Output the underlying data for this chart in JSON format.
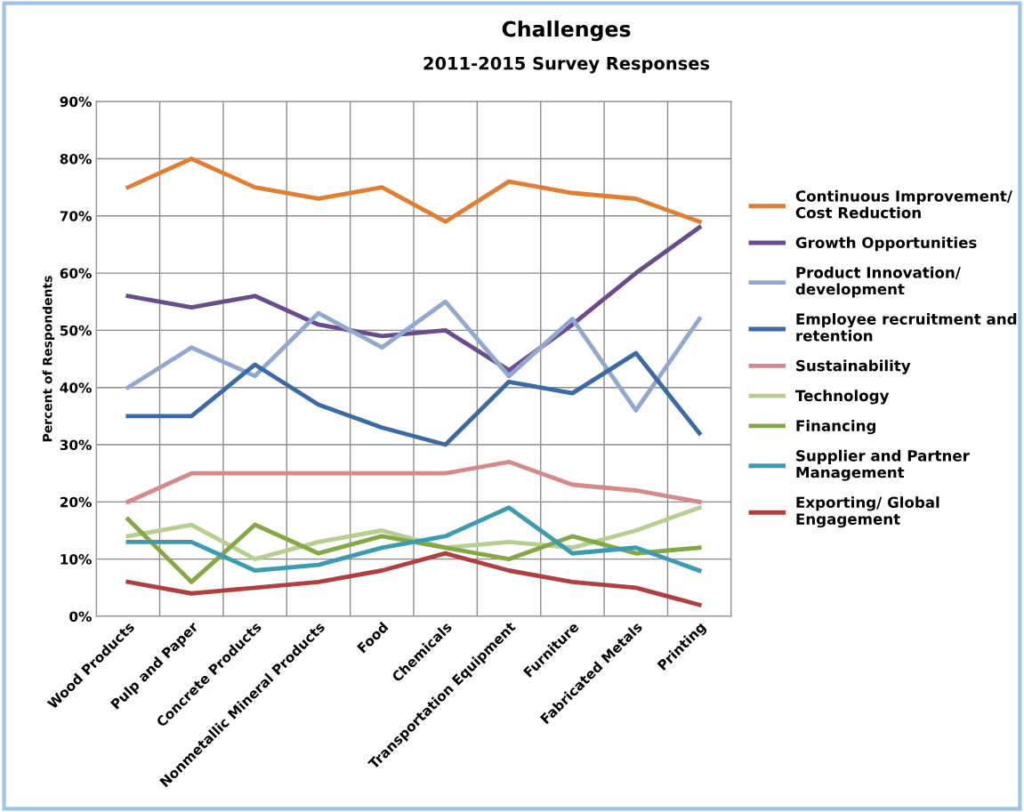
{
  "chart_data": {
    "type": "line",
    "title": "Challenges",
    "subtitle": "2011-2015 Survey Responses",
    "ylabel": "Percent of Respondents",
    "categories": [
      "Wood Products",
      "Pulp and Paper",
      "Concrete Products",
      "Nonmetallic Mineral Products",
      "Food",
      "Chemicals",
      "Transportation Equipment",
      "Furniture",
      "Fabricated Metals",
      "Printing"
    ],
    "series": [
      {
        "name": "Continuous Improvement/\nCost Reduction",
        "color": "#e07f34",
        "values": [
          75,
          80,
          75,
          73,
          75,
          69,
          76,
          74,
          73,
          69
        ]
      },
      {
        "name": "Growth Opportunities",
        "color": "#6a4c8c",
        "values": [
          56,
          54,
          56,
          51,
          49,
          50,
          43,
          51,
          60,
          68
        ]
      },
      {
        "name": "Product Innovation/\ndevelopment",
        "color": "#8fa9d2",
        "values": [
          40,
          47,
          42,
          53,
          47,
          55,
          42,
          52,
          36,
          52
        ]
      },
      {
        "name": "Employee recruitment and\nretention",
        "color": "#3b6aa6",
        "values": [
          35,
          35,
          44,
          37,
          33,
          30,
          41,
          39,
          46,
          32
        ]
      },
      {
        "name": "Sustainability",
        "color": "#d48a8a",
        "values": [
          20,
          25,
          25,
          25,
          25,
          25,
          27,
          23,
          22,
          20
        ]
      },
      {
        "name": "Technology",
        "color": "#b5cf8f",
        "values": [
          14,
          16,
          10,
          13,
          15,
          12,
          13,
          12,
          15,
          19
        ]
      },
      {
        "name": "Financing",
        "color": "#84a843",
        "values": [
          17,
          6,
          16,
          11,
          14,
          12,
          10,
          14,
          11,
          12
        ]
      },
      {
        "name": "Supplier and Partner\nManagement",
        "color": "#3a9bb3",
        "values": [
          13,
          13,
          8,
          9,
          12,
          14,
          19,
          11,
          12,
          8
        ]
      },
      {
        "name": "Exporting/ Global\nEngagement",
        "color": "#b04040",
        "values": [
          6,
          4,
          5,
          6,
          8,
          11,
          8,
          6,
          5,
          2
        ]
      }
    ],
    "ylim": [
      0,
      90
    ],
    "yticks": [
      {
        "value": 0,
        "label": "0%"
      },
      {
        "value": 10,
        "label": "10%"
      },
      {
        "value": 20,
        "label": "20%"
      },
      {
        "value": 30,
        "label": "30%"
      },
      {
        "value": 40,
        "label": "40%"
      },
      {
        "value": 50,
        "label": "50%"
      },
      {
        "value": 60,
        "label": "60%"
      },
      {
        "value": 70,
        "label": "70%"
      },
      {
        "value": 80,
        "label": "80%"
      },
      {
        "value": 90,
        "label": "90%"
      }
    ],
    "grid": true,
    "legend": "right",
    "marker": "none",
    "line_style": "solid"
  }
}
